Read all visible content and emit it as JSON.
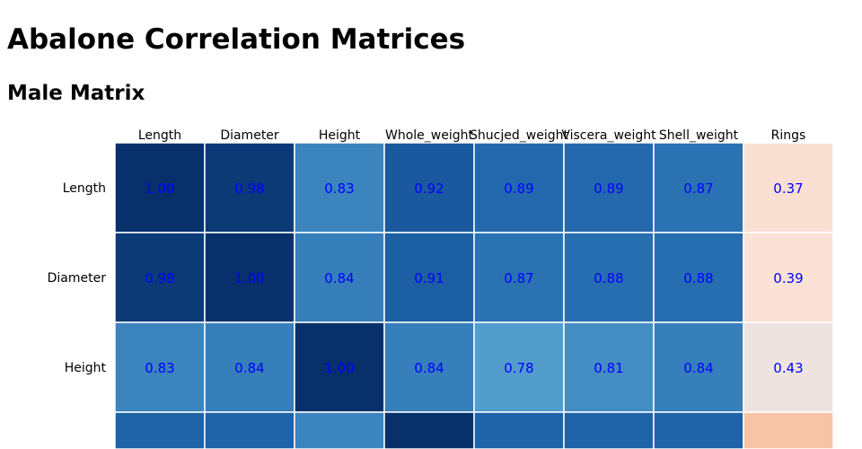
{
  "page": {
    "title": "Abalone Correlation Matrices"
  },
  "matrices": [
    {
      "title": "Male Matrix"
    }
  ],
  "colors": {
    "cell_border": "#ffffff",
    "value_text": "#0000ff",
    "strong_positive": "#08306b",
    "moderate_positive": "#2f7ebc",
    "weak_positive": "#fbd0b9",
    "neutral": "#f7f7f7"
  },
  "chart_data": {
    "type": "heatmap",
    "title": "Male Matrix",
    "columns": [
      "Length",
      "Diameter",
      "Height",
      "Whole_weight",
      "Shucjed_weight",
      "Viscera_weight",
      "Shell_weight",
      "Rings"
    ],
    "rows": [
      "Length",
      "Diameter",
      "Height"
    ],
    "values": [
      [
        1.0,
        0.98,
        0.83,
        0.92,
        0.89,
        0.89,
        0.87,
        0.37
      ],
      [
        0.98,
        1.0,
        0.84,
        0.91,
        0.87,
        0.88,
        0.88,
        0.39
      ],
      [
        0.83,
        0.84,
        1.0,
        0.84,
        0.78,
        0.81,
        0.84,
        0.43
      ]
    ],
    "value_format": "2 decimals",
    "color_scale": "diverging red-white-blue",
    "legend": "none"
  }
}
